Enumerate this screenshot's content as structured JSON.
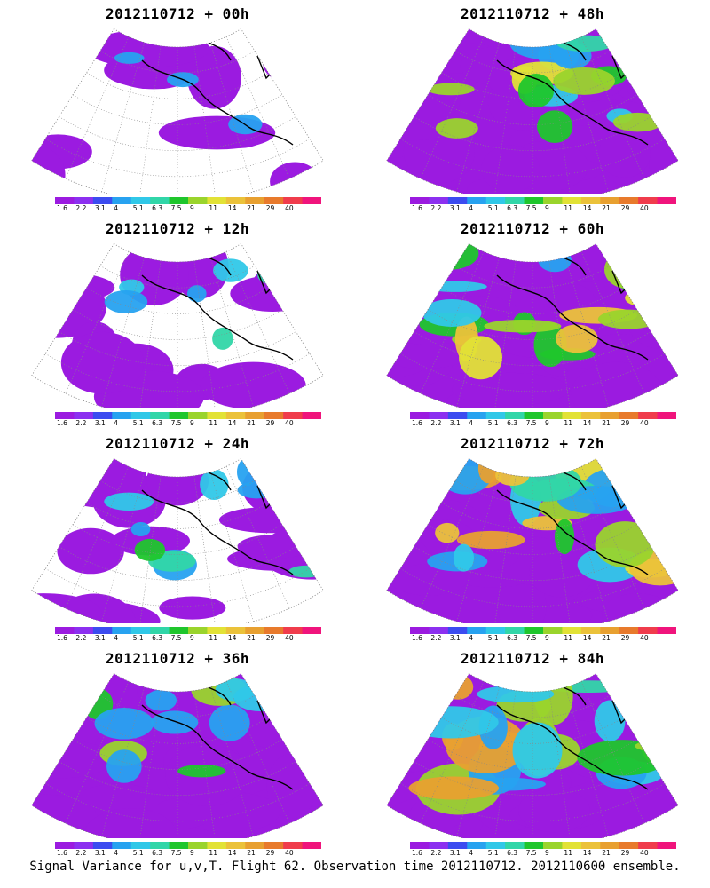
{
  "caption": "Signal Variance for u,v,T. Flight 62. Observation time 2012110712. 2012110600 ensemble.",
  "colorbar": {
    "colors": [
      "#9b1be0",
      "#8c30f0",
      "#3c4cf0",
      "#27a2f0",
      "#30c8e8",
      "#31d6a8",
      "#1fc62c",
      "#9ad42c",
      "#e2e236",
      "#ebc23a",
      "#e8a030",
      "#e87a2c",
      "#f03c4c",
      "#f0147c"
    ],
    "labels": [
      "1.6",
      "2.2",
      "3.1",
      "4",
      "5.1",
      "6.3",
      "7.5",
      "9",
      "11",
      "14",
      "21",
      "29",
      "40"
    ]
  },
  "panels": [
    {
      "title": "2012110712 + 00h",
      "level": 0
    },
    {
      "title": "2012110712 + 48h",
      "level": 4
    },
    {
      "title": "2012110712 + 12h",
      "level": 1
    },
    {
      "title": "2012110712 + 60h",
      "level": 5
    },
    {
      "title": "2012110712 + 24h",
      "level": 2
    },
    {
      "title": "2012110712 + 72h",
      "level": 6
    },
    {
      "title": "2012110712 + 36h",
      "level": 3
    },
    {
      "title": "2012110712 + 84h",
      "level": 7
    }
  ]
}
